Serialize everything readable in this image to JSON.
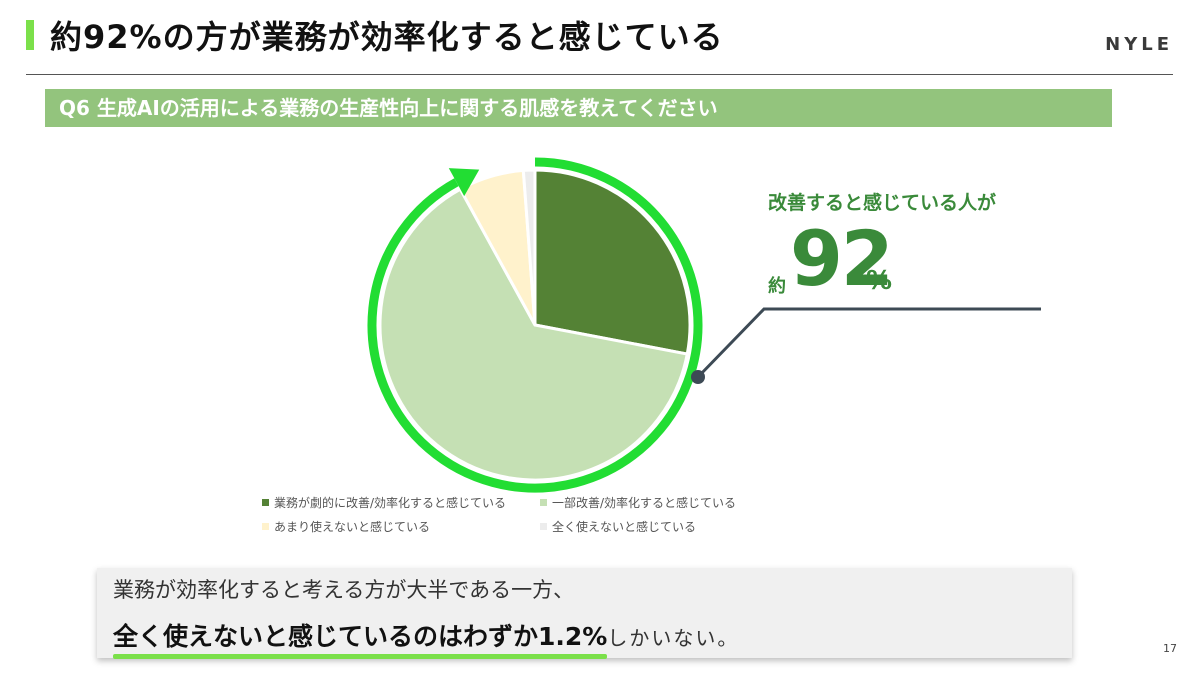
{
  "header": {
    "title": "約92%の方が業務が効率化すると感じている",
    "brand": "NYLE"
  },
  "question": "Q6 生成AIの活用による業務の生産性向上に関する肌感を教えてください",
  "chart_data": {
    "type": "pie",
    "title": "",
    "slices": [
      {
        "label": "業務が劇的に改善/効率化すると感じている",
        "value": 28.0,
        "color": "#548235"
      },
      {
        "label": "一部改善/効率化すると感じている",
        "value": 64.0,
        "color": "#c5e0b4"
      },
      {
        "label": "あまり使えないと感じている",
        "value": 6.8,
        "color": "#fff2cc"
      },
      {
        "label": "全く使えないと感じている",
        "value": 1.2,
        "color": "#ececec"
      }
    ],
    "legend_position": "bottom"
  },
  "callout": {
    "label": "改善すると感じている人が",
    "prefix": "約",
    "value": "92",
    "unit": "%"
  },
  "summary": {
    "line1": "業務が効率化すると考える方が大半である一方、",
    "emphasis": "全く使えないと感じているのはわずか1.2%",
    "tail": "しかいない。"
  },
  "page_number": "17",
  "colors": {
    "accent": "#7be04a",
    "arrow": "#22dd33",
    "banner": "#93c47d",
    "callout_text": "#3a8a3a",
    "leader_line": "#3d4a55"
  }
}
